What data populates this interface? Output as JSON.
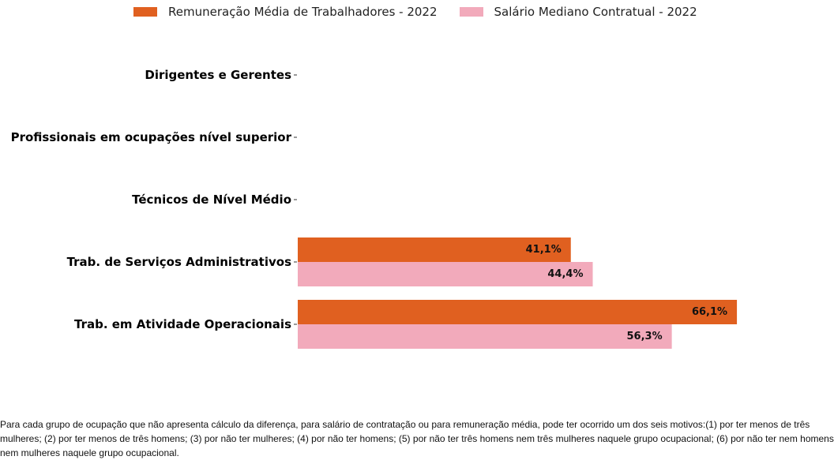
{
  "chart_data": {
    "type": "bar",
    "orientation": "horizontal",
    "categories": [
      "Dirigentes e Gerentes",
      "Profissionais em ocupações nível superior",
      "Técnicos de Nível Médio",
      "Trab. de Serviços Administrativos",
      "Trab. em Atividade Operacionais"
    ],
    "series": [
      {
        "name": "Remuneração Média de Trabalhadores - 2022",
        "color": "#e06020",
        "values": [
          null,
          null,
          null,
          41.1,
          66.1
        ],
        "labels": [
          null,
          null,
          null,
          "41,1%",
          "66,1%"
        ]
      },
      {
        "name": "Salário Mediano Contratual - 2022",
        "color": "#f2aabb",
        "values": [
          null,
          null,
          null,
          44.4,
          56.3
        ],
        "labels": [
          null,
          null,
          null,
          "44,4%",
          "56,3%"
        ]
      }
    ],
    "xlim": [
      0,
      80
    ],
    "legend_position": "top",
    "grid": false
  },
  "footnote": "Para cada grupo de ocupação que não apresenta cálculo da diferença, para salário de contratação ou para remuneração média, pode ter ocorrido um dos seis motivos:(1) por ter menos de três mulheres; (2) por ter menos de três homens; (3) por não ter mulheres; (4) por não ter homens; (5) por não ter três homens nem três mulheres naquele grupo ocupacional; (6) por não ter nem homens nem mulheres naquele grupo ocupacional."
}
